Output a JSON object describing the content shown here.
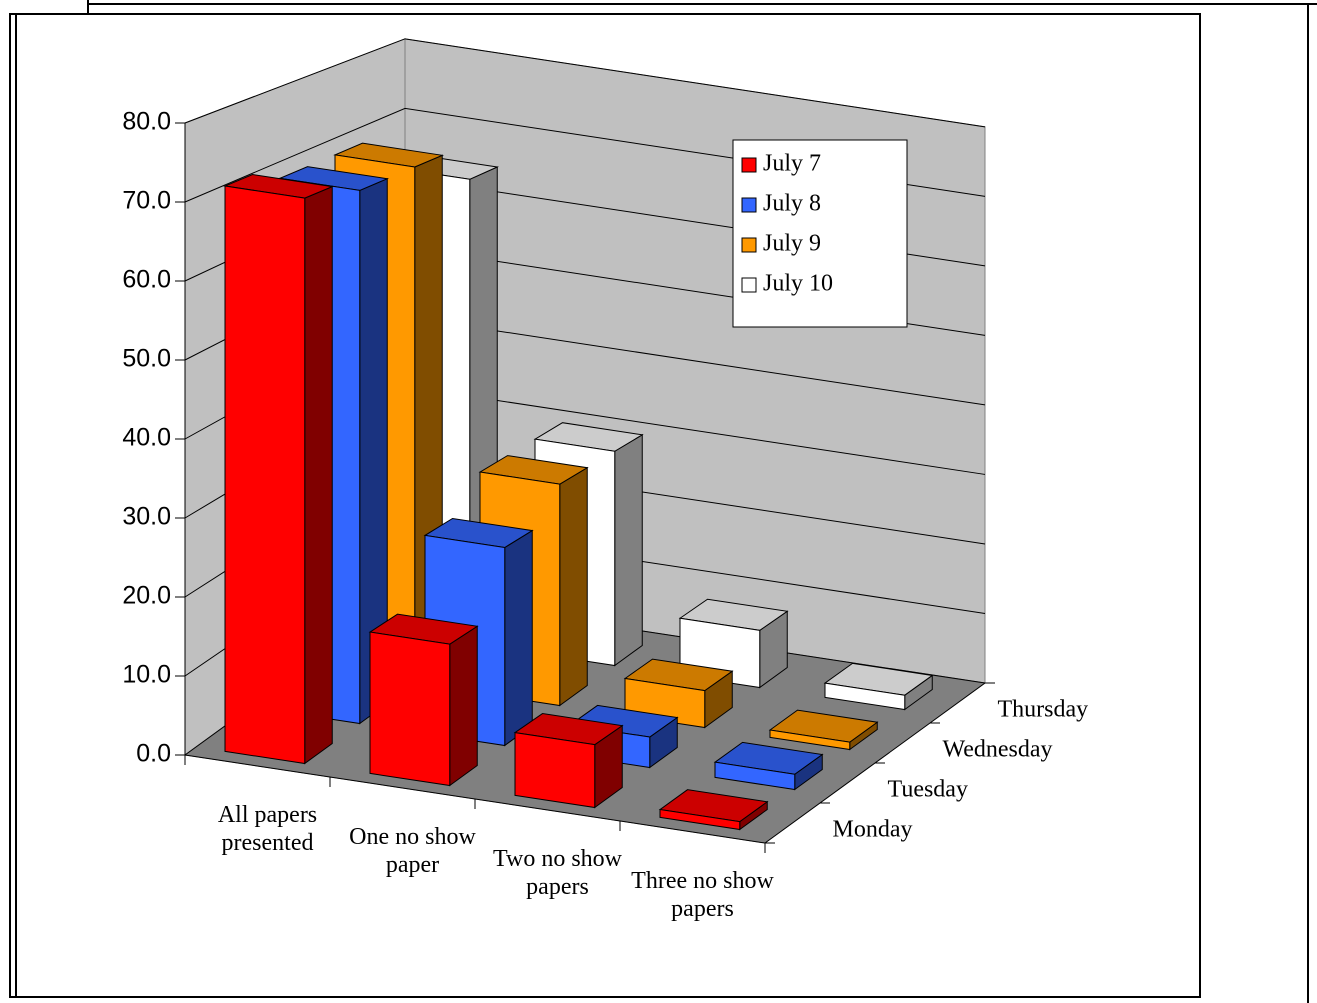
{
  "chart_data": {
    "type": "bar3d",
    "categories": [
      "All papers presented",
      "One no show paper",
      "Two no show papers",
      "Three no show papers"
    ],
    "depth_labels": [
      "Monday",
      "Tuesday",
      "Wednesday",
      "Thursday"
    ],
    "series": [
      {
        "name": "July 7",
        "color": "#ff0000",
        "values": [
          72,
          18,
          8,
          1
        ]
      },
      {
        "name": "July 8",
        "color": "#3366ff",
        "values": [
          70,
          26,
          4,
          2
        ]
      },
      {
        "name": "July 9",
        "color": "#ff9900",
        "values": [
          70,
          30,
          5,
          1
        ]
      },
      {
        "name": "July 10",
        "color": "#ffffff",
        "values": [
          65,
          30,
          8,
          2
        ]
      }
    ],
    "ylim": [
      0,
      80
    ],
    "yticks": [
      {
        "value": 0,
        "label": "0.0"
      },
      {
        "value": 10,
        "label": "10.0"
      },
      {
        "value": 20,
        "label": "20.0"
      },
      {
        "value": 30,
        "label": "30.0"
      },
      {
        "value": 40,
        "label": "40.0"
      },
      {
        "value": 50,
        "label": "50.0"
      },
      {
        "value": 60,
        "label": "60.0"
      },
      {
        "value": 70,
        "label": "70.0"
      },
      {
        "value": 80,
        "label": "80.0"
      }
    ],
    "grid": true,
    "legend": "upper right"
  }
}
